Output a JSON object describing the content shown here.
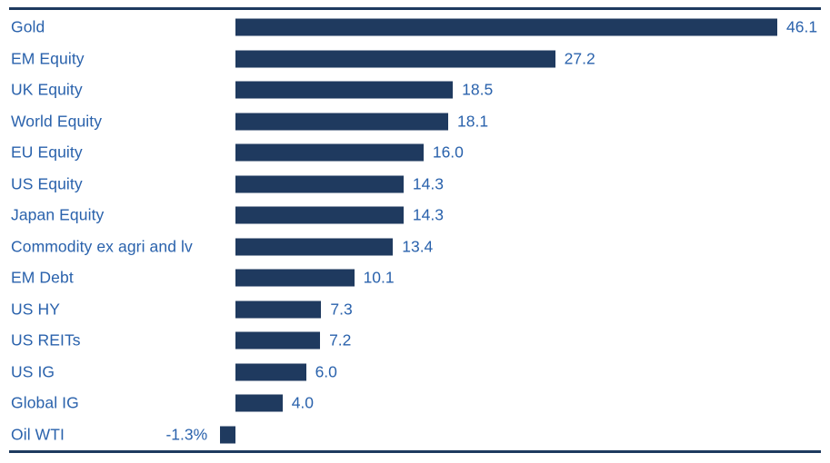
{
  "chart_data": {
    "type": "bar",
    "orientation": "horizontal",
    "title": "",
    "xlabel": "",
    "ylabel": "",
    "categories": [
      "Gold",
      "EM Equity",
      "UK Equity",
      "World Equity",
      "EU Equity",
      "US Equity",
      "Japan Equity",
      "Commodity ex agri and lv",
      "EM Debt",
      "US HY",
      "US REITs",
      "US IG",
      "Global IG",
      "Oil WTI"
    ],
    "values": [
      46.1,
      27.2,
      18.5,
      18.1,
      16.0,
      14.3,
      14.3,
      13.4,
      10.1,
      7.3,
      7.2,
      6.0,
      4.0,
      -1.3
    ],
    "value_labels": [
      "46.1",
      "27.2",
      "18.5",
      "18.1",
      "16.0",
      "14.3",
      "14.3",
      "13.4",
      "10.1",
      "7.3",
      "7.2",
      "6.0",
      "4.0",
      "-1.3%"
    ],
    "xlim": [
      -1.3,
      46.1
    ],
    "grid": false,
    "legend": "none",
    "colors": {
      "bar": "#1F3A5F",
      "label_text": "#2A62AC",
      "value_text": "#2A62AC",
      "rule_line": "#1E3A5F",
      "background": "#ffffff"
    }
  }
}
